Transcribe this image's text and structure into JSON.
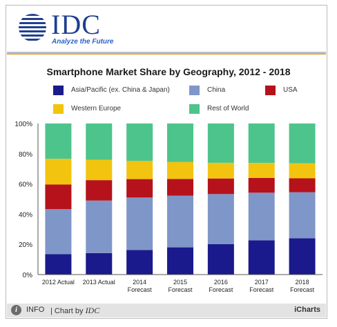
{
  "header": {
    "logo_text": "IDC",
    "tagline": "Analyze the Future"
  },
  "colors": {
    "asia_pacific": "#1a1a8c",
    "china": "#7f96c8",
    "usa": "#b5121b",
    "western_europe": "#f2c40f",
    "rest_of_world": "#4dc48b"
  },
  "footer": {
    "info_label": "INFO",
    "chart_by": "| Chart by",
    "brand": "IDC",
    "icharts": "iCharts"
  },
  "chart_data": {
    "type": "bar",
    "stacked": true,
    "title": "Smartphone Market Share by Geography, 2012 - 2018",
    "categories": [
      [
        "2012 Actual"
      ],
      [
        "2013 Actual"
      ],
      [
        "2014",
        "Forecast"
      ],
      [
        "2015",
        "Forecast"
      ],
      [
        "2016",
        "Forecast"
      ],
      [
        "2017",
        "Forecast"
      ],
      [
        "2018",
        "Forecast"
      ]
    ],
    "ylim": [
      0,
      100
    ],
    "yticks": [
      "0%",
      "20%",
      "40%",
      "60%",
      "80%",
      "100%"
    ],
    "grid": false,
    "legend_position": "top",
    "series": [
      {
        "name": "Asia/Pacific (ex. China & Japan)",
        "color": "#1a1a8c",
        "values": [
          13.5,
          14.2,
          16.2,
          18.0,
          20.2,
          22.7,
          24.0
        ]
      },
      {
        "name": "China",
        "color": "#7f96c8",
        "values": [
          29.8,
          34.8,
          34.8,
          34.2,
          33.1,
          31.5,
          30.5
        ]
      },
      {
        "name": "USA",
        "color": "#b5121b",
        "values": [
          16.3,
          13.5,
          12.2,
          11.1,
          10.3,
          9.8,
          9.2
        ]
      },
      {
        "name": "Western Europe",
        "color": "#f2c40f",
        "values": [
          17.0,
          13.5,
          12.0,
          11.2,
          10.4,
          9.9,
          10.0
        ]
      },
      {
        "name": "Rest of World",
        "color": "#4dc48b",
        "values": [
          23.4,
          24.0,
          24.8,
          25.5,
          26.0,
          26.1,
          26.3
        ]
      }
    ]
  }
}
